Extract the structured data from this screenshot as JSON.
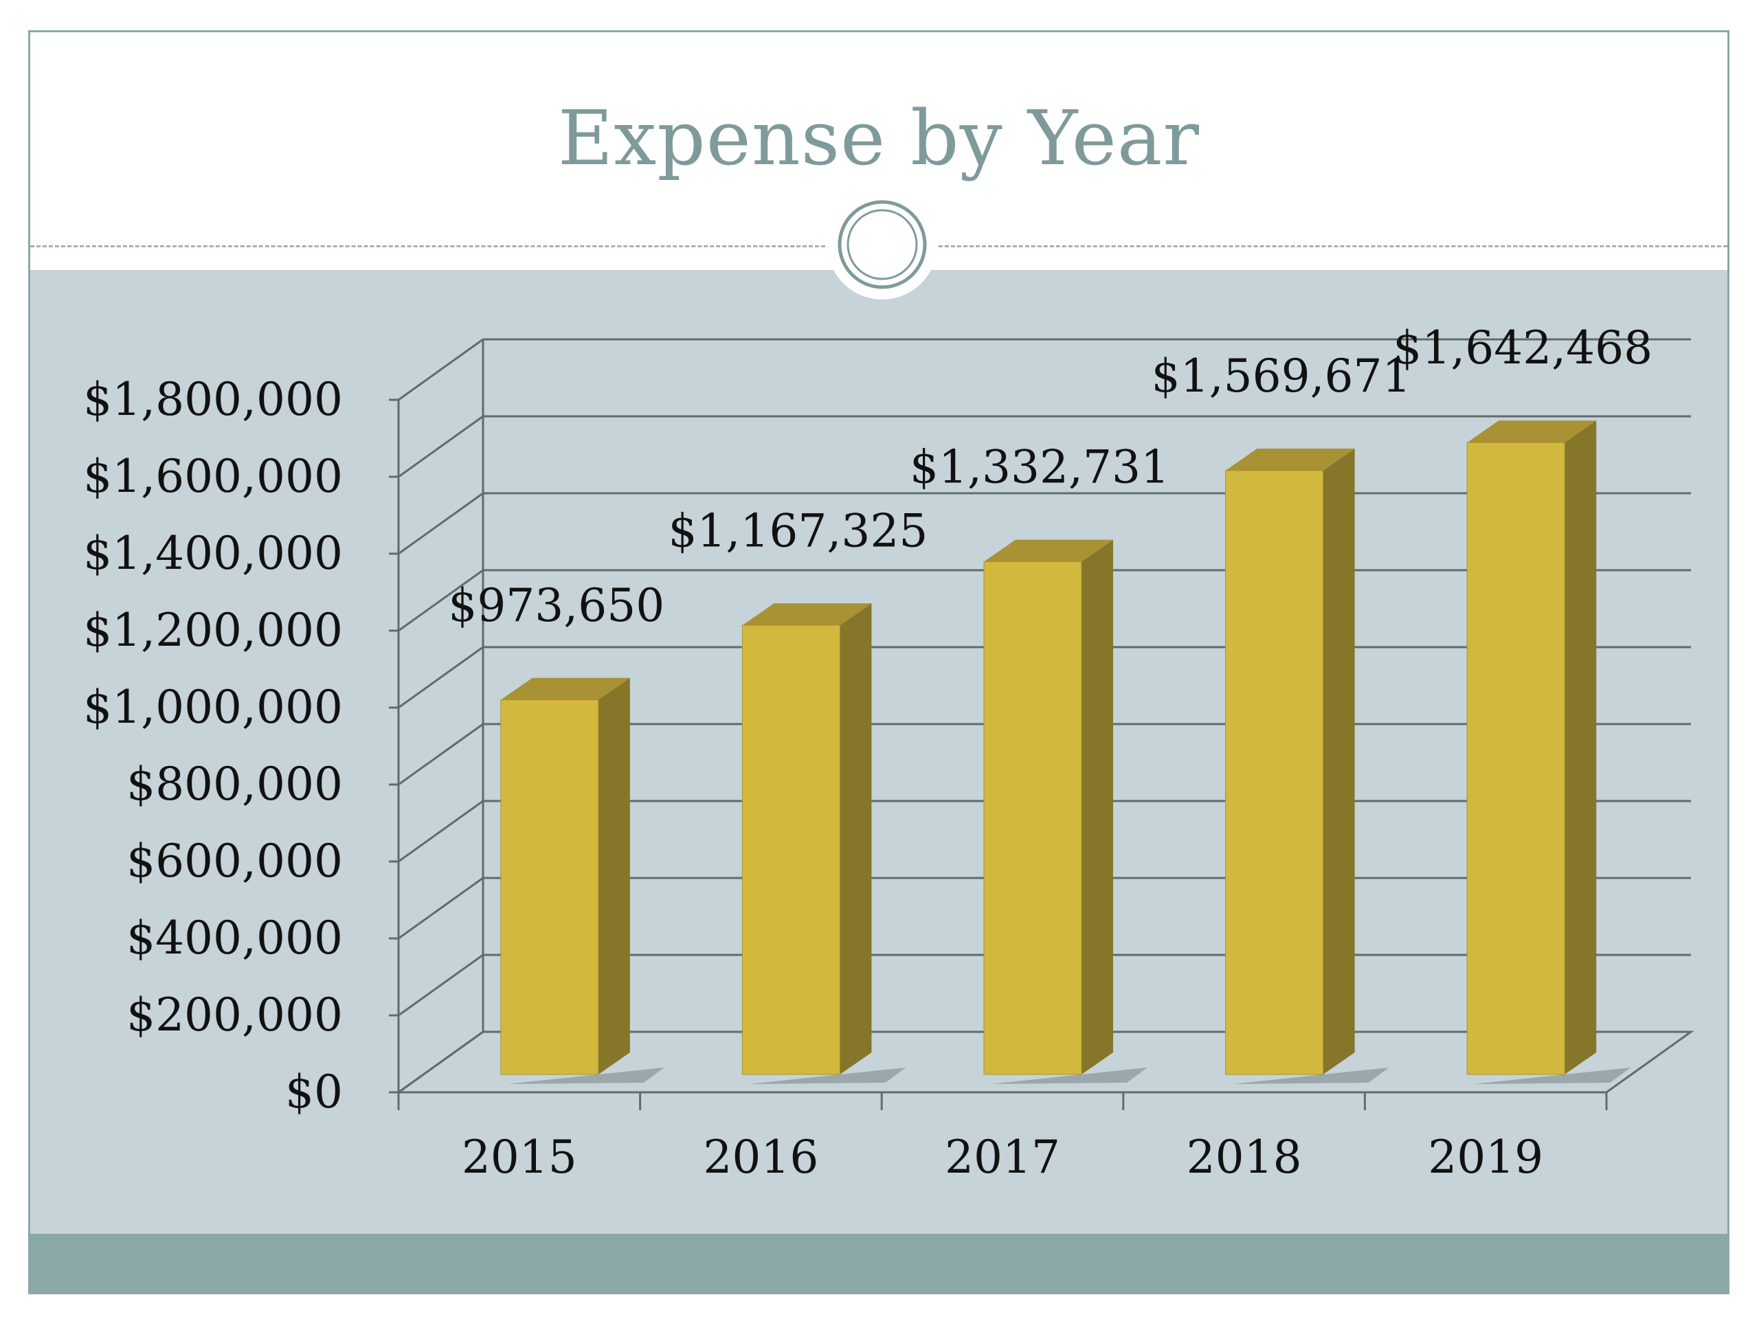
{
  "slide": {
    "title": "Expense by Year"
  },
  "colors": {
    "title": "#7f9a9a",
    "content_band": "#c6d3d8",
    "footer_band": "#8aa8a8",
    "bar_front": "#d2b93e",
    "bar_side": "#857629",
    "bar_top": "#a89234",
    "gridline": "#5f6b6e"
  },
  "chart_data": {
    "type": "bar",
    "style": "3d-column",
    "title": "",
    "xlabel": "",
    "ylabel": "",
    "categories": [
      "2015",
      "2016",
      "2017",
      "2018",
      "2019"
    ],
    "values": [
      973650,
      1167325,
      1332731,
      1569671,
      1642468
    ],
    "data_labels": [
      "$973,650",
      "$1,167,325",
      "$1,332,731",
      "$1,569,671",
      "$1,642,468"
    ],
    "y_ticks": [
      0,
      200000,
      400000,
      600000,
      800000,
      1000000,
      1200000,
      1400000,
      1600000,
      1800000
    ],
    "y_tick_labels": [
      "$0",
      "$200,000",
      "$400,000",
      "$600,000",
      "$800,000",
      "$1,000,000",
      "$1,200,000",
      "$1,400,000",
      "$1,600,000",
      "$1,800,000"
    ],
    "ylim": [
      0,
      1800000
    ],
    "grid": true,
    "legend": "none"
  }
}
